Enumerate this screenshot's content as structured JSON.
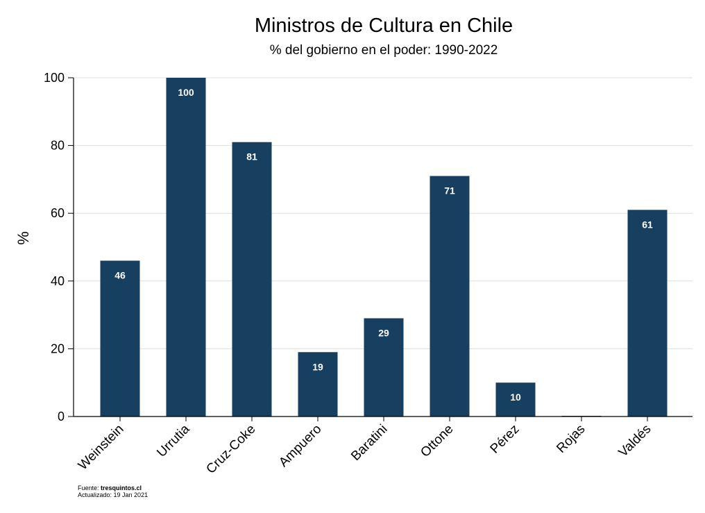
{
  "chart_data": {
    "type": "bar",
    "title": "Ministros de Cultura en Chile",
    "subtitle": "% del gobierno en el poder: 1990-2022",
    "ylabel": "%",
    "xlabel": "",
    "categories": [
      "Weinstein",
      "Urrutia",
      "Cruz-Coke",
      "Ampuero",
      "Baratini",
      "Ottone",
      "Pérez",
      "Rojas",
      "Valdés"
    ],
    "values": [
      46,
      100,
      81,
      19,
      29,
      71,
      10,
      0,
      61
    ],
    "data_labels": [
      "46",
      "100",
      "81",
      "19",
      "29",
      "71",
      "10",
      "",
      "61"
    ],
    "ylim": [
      0,
      100
    ],
    "yticks": [
      0,
      20,
      40,
      60,
      80,
      100
    ],
    "ytick_labels": [
      "0",
      "20",
      "40",
      "60",
      "80",
      "100"
    ],
    "grid": true,
    "bar_color": "#163f60",
    "grid_color": "#dddddd"
  },
  "footer": {
    "source_prefix": "Fuente: ",
    "source_name": "tresquintos.cl",
    "updated": "Actualizado: 19 Jan 2021"
  }
}
